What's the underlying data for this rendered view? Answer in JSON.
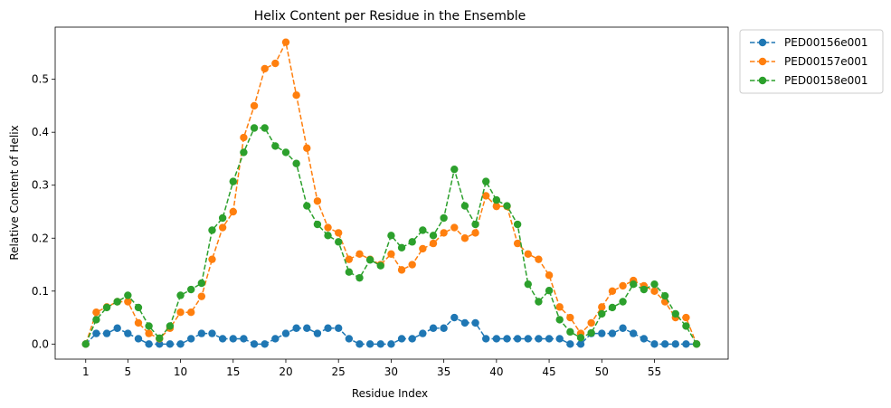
{
  "chart_data": {
    "type": "line",
    "title": "Helix Content per Residue in the Ensemble",
    "xlabel": "Residue Index",
    "ylabel": "Relative Content of Helix",
    "xlim": [
      -1.9,
      62.0
    ],
    "ylim": [
      -0.0285,
      0.5985
    ],
    "x_ticks": [
      1,
      5,
      10,
      15,
      20,
      25,
      30,
      35,
      40,
      45,
      50,
      55
    ],
    "y_ticks": [
      0.0,
      0.1,
      0.2,
      0.3,
      0.4,
      0.5
    ],
    "y_tick_labels": [
      "0.0",
      "0.1",
      "0.2",
      "0.3",
      "0.4",
      "0.5"
    ],
    "grid": false,
    "legend_placement": "outside-top-right",
    "x": [
      1,
      2,
      3,
      4,
      5,
      6,
      7,
      8,
      9,
      10,
      11,
      12,
      13,
      14,
      15,
      16,
      17,
      18,
      19,
      20,
      21,
      22,
      23,
      24,
      25,
      26,
      27,
      28,
      29,
      30,
      31,
      32,
      33,
      34,
      35,
      36,
      37,
      38,
      39,
      40,
      41,
      42,
      43,
      44,
      45,
      46,
      47,
      48,
      49,
      50,
      51,
      52,
      53,
      54,
      55,
      56,
      57,
      58,
      59
    ],
    "series": [
      {
        "name": "PED00156e001",
        "color": "#1f77b4",
        "values": [
          0.0,
          0.02,
          0.02,
          0.03,
          0.02,
          0.01,
          0.0,
          0.0,
          0.0,
          0.0,
          0.01,
          0.02,
          0.02,
          0.01,
          0.01,
          0.01,
          0.0,
          0.0,
          0.01,
          0.02,
          0.03,
          0.03,
          0.02,
          0.03,
          0.03,
          0.01,
          0.0,
          0.0,
          0.0,
          0.0,
          0.01,
          0.01,
          0.02,
          0.03,
          0.03,
          0.05,
          0.04,
          0.04,
          0.01,
          0.01,
          0.01,
          0.01,
          0.01,
          0.01,
          0.01,
          0.01,
          0.0,
          0.0,
          0.02,
          0.02,
          0.02,
          0.03,
          0.02,
          0.01,
          0.0,
          0.0,
          0.0,
          0.0,
          0.0
        ]
      },
      {
        "name": "PED00157e001",
        "color": "#ff7f0e",
        "values": [
          0.0,
          0.06,
          0.07,
          0.08,
          0.08,
          0.04,
          0.02,
          0.01,
          0.03,
          0.06,
          0.06,
          0.09,
          0.16,
          0.22,
          0.25,
          0.39,
          0.45,
          0.52,
          0.53,
          0.57,
          0.47,
          0.37,
          0.27,
          0.22,
          0.21,
          0.16,
          0.17,
          0.16,
          0.15,
          0.17,
          0.14,
          0.15,
          0.18,
          0.19,
          0.21,
          0.22,
          0.2,
          0.21,
          0.28,
          0.26,
          0.26,
          0.19,
          0.17,
          0.16,
          0.13,
          0.07,
          0.05,
          0.02,
          0.04,
          0.07,
          0.1,
          0.11,
          0.12,
          0.11,
          0.1,
          0.08,
          0.05,
          0.05,
          0.0
        ]
      },
      {
        "name": "PED00158e001",
        "color": "#2ca02c",
        "values": [
          0.0,
          0.046,
          0.069,
          0.08,
          0.092,
          0.069,
          0.034,
          0.011,
          0.034,
          0.092,
          0.103,
          0.115,
          0.215,
          0.238,
          0.307,
          0.362,
          0.408,
          0.408,
          0.374,
          0.362,
          0.341,
          0.261,
          0.226,
          0.205,
          0.193,
          0.136,
          0.125,
          0.159,
          0.148,
          0.205,
          0.182,
          0.193,
          0.215,
          0.205,
          0.238,
          0.33,
          0.261,
          0.226,
          0.307,
          0.272,
          0.261,
          0.226,
          0.113,
          0.08,
          0.101,
          0.046,
          0.023,
          0.012,
          0.021,
          0.057,
          0.069,
          0.08,
          0.113,
          0.103,
          0.113,
          0.091,
          0.057,
          0.034,
          0.0
        ]
      }
    ]
  }
}
